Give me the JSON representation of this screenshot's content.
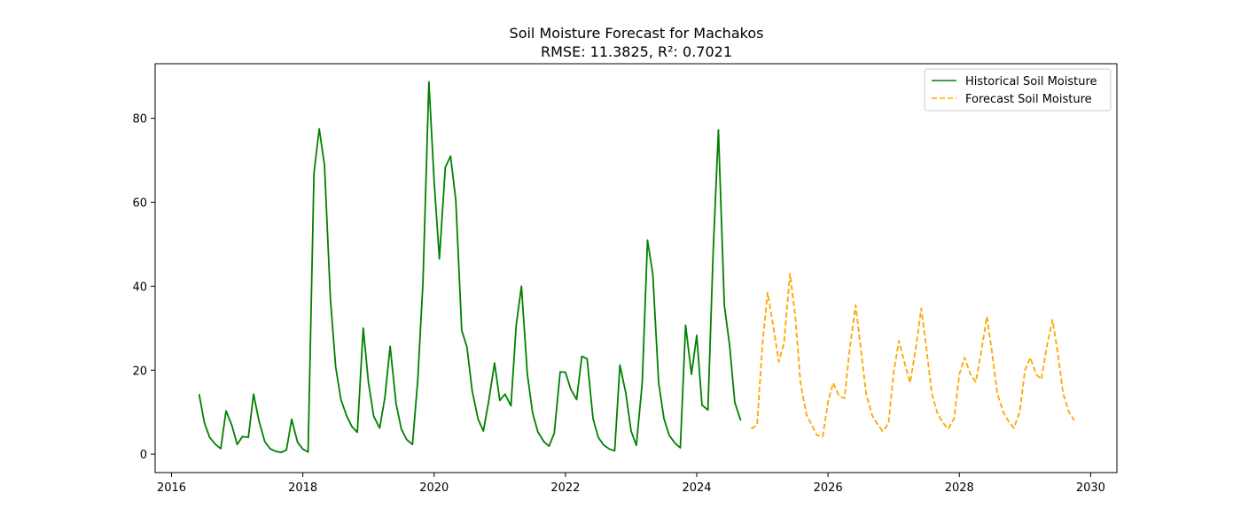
{
  "chart_data": {
    "type": "line",
    "title": "Soil Moisture Forecast for Machakos",
    "subtitle": "RMSE: 11.3825, R²: 0.7021",
    "xlabel": "",
    "ylabel": "",
    "xlim": [
      2015.75,
      2030.4
    ],
    "ylim": [
      -4.4,
      93.0
    ],
    "xticks": [
      2016,
      2018,
      2020,
      2022,
      2024,
      2026,
      2028,
      2030
    ],
    "yticks": [
      0,
      20,
      40,
      60,
      80
    ],
    "grid": false,
    "legend_position": "top-right",
    "series": [
      {
        "name": "Historical Soil Moisture",
        "color": "#008000",
        "style": "solid",
        "points": [
          [
            2016.42,
            14.3
          ],
          [
            2016.5,
            7.5
          ],
          [
            2016.58,
            4.0
          ],
          [
            2016.67,
            2.3
          ],
          [
            2016.75,
            1.3
          ],
          [
            2016.83,
            10.3
          ],
          [
            2016.92,
            6.8
          ],
          [
            2017.0,
            2.3
          ],
          [
            2017.08,
            4.2
          ],
          [
            2017.17,
            4.0
          ],
          [
            2017.25,
            14.3
          ],
          [
            2017.33,
            8.0
          ],
          [
            2017.42,
            3.0
          ],
          [
            2017.5,
            1.3
          ],
          [
            2017.58,
            0.7
          ],
          [
            2017.67,
            0.4
          ],
          [
            2017.75,
            1.0
          ],
          [
            2017.83,
            8.3
          ],
          [
            2017.92,
            2.8
          ],
          [
            2018.0,
            1.2
          ],
          [
            2018.08,
            0.5
          ],
          [
            2018.17,
            67.0
          ],
          [
            2018.25,
            77.5
          ],
          [
            2018.33,
            68.8
          ],
          [
            2018.42,
            37.0
          ],
          [
            2018.5,
            20.8
          ],
          [
            2018.58,
            13.0
          ],
          [
            2018.67,
            9.0
          ],
          [
            2018.75,
            6.5
          ],
          [
            2018.83,
            5.2
          ],
          [
            2018.92,
            30.0
          ],
          [
            2019.0,
            17.0
          ],
          [
            2019.08,
            9.0
          ],
          [
            2019.17,
            6.2
          ],
          [
            2019.25,
            13.5
          ],
          [
            2019.33,
            25.7
          ],
          [
            2019.42,
            12.0
          ],
          [
            2019.5,
            6.0
          ],
          [
            2019.58,
            3.5
          ],
          [
            2019.67,
            2.3
          ],
          [
            2019.75,
            17.5
          ],
          [
            2019.83,
            41.0
          ],
          [
            2019.92,
            88.7
          ],
          [
            2020.0,
            65.0
          ],
          [
            2020.08,
            46.5
          ],
          [
            2020.17,
            68.3
          ],
          [
            2020.25,
            71.0
          ],
          [
            2020.33,
            60.5
          ],
          [
            2020.42,
            29.5
          ],
          [
            2020.5,
            25.5
          ],
          [
            2020.58,
            15.0
          ],
          [
            2020.67,
            8.3
          ],
          [
            2020.75,
            5.5
          ],
          [
            2020.83,
            12.5
          ],
          [
            2020.92,
            21.7
          ],
          [
            2021.0,
            12.8
          ],
          [
            2021.08,
            14.3
          ],
          [
            2021.17,
            11.5
          ],
          [
            2021.25,
            30.7
          ],
          [
            2021.33,
            40.0
          ],
          [
            2021.42,
            19.0
          ],
          [
            2021.5,
            9.8
          ],
          [
            2021.58,
            5.3
          ],
          [
            2021.67,
            3.0
          ],
          [
            2021.75,
            1.9
          ],
          [
            2021.83,
            5.0
          ],
          [
            2021.92,
            19.6
          ],
          [
            2022.0,
            19.5
          ],
          [
            2022.08,
            15.5
          ],
          [
            2022.17,
            13.0
          ],
          [
            2022.25,
            23.3
          ],
          [
            2022.33,
            22.7
          ],
          [
            2022.42,
            8.5
          ],
          [
            2022.5,
            4.0
          ],
          [
            2022.58,
            2.2
          ],
          [
            2022.67,
            1.2
          ],
          [
            2022.75,
            0.8
          ],
          [
            2022.83,
            21.2
          ],
          [
            2022.92,
            14.5
          ],
          [
            2023.0,
            5.5
          ],
          [
            2023.08,
            2.1
          ],
          [
            2023.17,
            17.0
          ],
          [
            2023.25,
            51.0
          ],
          [
            2023.33,
            43.0
          ],
          [
            2023.42,
            17.0
          ],
          [
            2023.5,
            8.5
          ],
          [
            2023.58,
            4.5
          ],
          [
            2023.67,
            2.6
          ],
          [
            2023.75,
            1.5
          ],
          [
            2023.83,
            30.7
          ],
          [
            2023.92,
            19.0
          ],
          [
            2024.0,
            28.3
          ],
          [
            2024.08,
            11.7
          ],
          [
            2024.17,
            10.5
          ],
          [
            2024.25,
            48.0
          ],
          [
            2024.33,
            77.2
          ],
          [
            2024.42,
            35.5
          ],
          [
            2024.5,
            26.0
          ],
          [
            2024.58,
            12.3
          ],
          [
            2024.67,
            8.0
          ]
        ]
      },
      {
        "name": "Forecast Soil Moisture",
        "color": "#ffa500",
        "style": "dashed",
        "points": [
          [
            2024.83,
            6.0
          ],
          [
            2024.92,
            7.0
          ],
          [
            2025.0,
            26.0
          ],
          [
            2025.08,
            38.5
          ],
          [
            2025.17,
            30.0
          ],
          [
            2025.25,
            22.0
          ],
          [
            2025.33,
            26.5
          ],
          [
            2025.42,
            43.0
          ],
          [
            2025.5,
            33.0
          ],
          [
            2025.58,
            17.0
          ],
          [
            2025.67,
            9.5
          ],
          [
            2025.75,
            7.0
          ],
          [
            2025.83,
            4.5
          ],
          [
            2025.92,
            4.2
          ],
          [
            2026.0,
            12.5
          ],
          [
            2026.08,
            17.0
          ],
          [
            2026.17,
            13.8
          ],
          [
            2026.25,
            13.3
          ],
          [
            2026.33,
            25.0
          ],
          [
            2026.42,
            35.5
          ],
          [
            2026.5,
            25.0
          ],
          [
            2026.58,
            14.5
          ],
          [
            2026.67,
            9.3
          ],
          [
            2026.75,
            7.2
          ],
          [
            2026.83,
            5.5
          ],
          [
            2026.92,
            7.2
          ],
          [
            2027.0,
            19.5
          ],
          [
            2027.08,
            27.0
          ],
          [
            2027.17,
            21.5
          ],
          [
            2027.25,
            17.0
          ],
          [
            2027.33,
            24.5
          ],
          [
            2027.42,
            34.7
          ],
          [
            2027.5,
            25.0
          ],
          [
            2027.58,
            14.5
          ],
          [
            2027.67,
            9.5
          ],
          [
            2027.75,
            7.5
          ],
          [
            2027.83,
            6.0
          ],
          [
            2027.92,
            8.5
          ],
          [
            2028.0,
            19.0
          ],
          [
            2028.08,
            23.0
          ],
          [
            2028.17,
            19.0
          ],
          [
            2028.25,
            17.2
          ],
          [
            2028.33,
            24.0
          ],
          [
            2028.42,
            32.8
          ],
          [
            2028.5,
            24.0
          ],
          [
            2028.58,
            14.3
          ],
          [
            2028.67,
            10.0
          ],
          [
            2028.75,
            7.8
          ],
          [
            2028.83,
            6.2
          ],
          [
            2028.92,
            10.0
          ],
          [
            2029.0,
            20.0
          ],
          [
            2029.08,
            23.0
          ],
          [
            2029.17,
            19.0
          ],
          [
            2029.25,
            17.8
          ],
          [
            2029.33,
            25.5
          ],
          [
            2029.42,
            32.0
          ],
          [
            2029.5,
            24.0
          ],
          [
            2029.58,
            14.5
          ],
          [
            2029.67,
            10.0
          ],
          [
            2029.75,
            8.0
          ]
        ]
      }
    ]
  }
}
